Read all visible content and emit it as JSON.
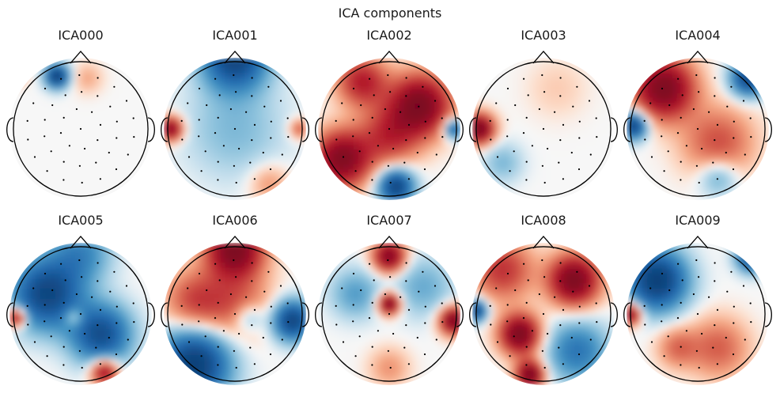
{
  "figure": {
    "title": "ICA components"
  },
  "components": [
    {
      "label": "ICA000",
      "blobs": [
        {
          "u": -0.35,
          "v": 0.78,
          "a": -0.95,
          "s": 0.12
        },
        {
          "u": -0.95,
          "v": 0.8,
          "a": 0.25,
          "s": 0.1
        },
        {
          "u": 0.1,
          "v": 0.75,
          "a": 0.15,
          "s": 0.15
        }
      ]
    },
    {
      "label": "ICA001",
      "blobs": [
        {
          "u": 0,
          "v": 1.05,
          "a": -0.9,
          "s": 0.32
        },
        {
          "u": -0.95,
          "v": 0,
          "a": 0.85,
          "s": 0.12
        },
        {
          "u": 0,
          "v": 0,
          "a": -0.2,
          "s": 0.5
        },
        {
          "u": 0.95,
          "v": 0,
          "a": 0.35,
          "s": 0.1
        },
        {
          "u": 0.5,
          "v": -0.8,
          "a": 0.2,
          "s": 0.2
        }
      ]
    },
    {
      "label": "ICA002",
      "blobs": [
        {
          "u": 0.45,
          "v": 0.35,
          "a": 1,
          "s": 0.3
        },
        {
          "u": -0.7,
          "v": -0.45,
          "a": 0.95,
          "s": 0.28
        },
        {
          "u": 0.1,
          "v": -0.85,
          "a": -0.9,
          "s": 0.18
        },
        {
          "u": 0.95,
          "v": 0,
          "a": -0.7,
          "s": 0.1
        },
        {
          "u": -0.4,
          "v": 0.7,
          "a": 0.6,
          "s": 0.25
        },
        {
          "u": 0,
          "v": -0.1,
          "a": 0.5,
          "s": 0.3
        }
      ]
    },
    {
      "label": "ICA003",
      "blobs": [
        {
          "u": -0.95,
          "v": 0,
          "a": 1,
          "s": 0.15
        },
        {
          "u": -0.6,
          "v": -0.5,
          "a": -0.2,
          "s": 0.2
        },
        {
          "u": 0.2,
          "v": 0.6,
          "a": 0.08,
          "s": 0.3
        }
      ]
    },
    {
      "label": "ICA004",
      "blobs": [
        {
          "u": -0.5,
          "v": 0.6,
          "a": 1,
          "s": 0.3
        },
        {
          "u": -0.95,
          "v": 0.05,
          "a": -0.9,
          "s": 0.14
        },
        {
          "u": 0.75,
          "v": 0.75,
          "a": -0.85,
          "s": 0.18
        },
        {
          "u": 0.3,
          "v": -0.2,
          "a": 0.4,
          "s": 0.35
        },
        {
          "u": 0.3,
          "v": -0.7,
          "a": -0.3,
          "s": 0.2
        }
      ]
    },
    {
      "label": "ICA005",
      "blobs": [
        {
          "u": -0.5,
          "v": 0.3,
          "a": -0.9,
          "s": 0.35
        },
        {
          "u": 0.3,
          "v": -0.3,
          "a": -0.8,
          "s": 0.3
        },
        {
          "u": -0.95,
          "v": -0.05,
          "a": 0.8,
          "s": 0.1
        },
        {
          "u": 0.35,
          "v": -0.85,
          "a": 0.75,
          "s": 0.14
        },
        {
          "u": -0.1,
          "v": -0.05,
          "a": 0.35,
          "s": 0.1
        },
        {
          "u": 0,
          "v": 0.9,
          "a": -0.4,
          "s": 0.3
        }
      ]
    },
    {
      "label": "ICA006",
      "blobs": [
        {
          "u": 0,
          "v": 0.95,
          "a": 1,
          "s": 0.28
        },
        {
          "u": -0.6,
          "v": -0.75,
          "a": -1,
          "s": 0.35
        },
        {
          "u": 0.85,
          "v": -0.1,
          "a": -0.9,
          "s": 0.2
        },
        {
          "u": 0,
          "v": 0.15,
          "a": 0.35,
          "s": 0.35
        },
        {
          "u": -0.6,
          "v": 0.2,
          "a": 0.4,
          "s": 0.3
        },
        {
          "u": 0.2,
          "v": -0.05,
          "a": -0.3,
          "s": 0.15
        }
      ]
    },
    {
      "label": "ICA007",
      "blobs": [
        {
          "u": 0,
          "v": 0.85,
          "a": 0.9,
          "s": 0.16
        },
        {
          "u": 0,
          "v": 0.15,
          "a": 0.95,
          "s": 0.11
        },
        {
          "u": 0.95,
          "v": -0.1,
          "a": 0.95,
          "s": 0.14
        },
        {
          "u": -0.5,
          "v": 0.3,
          "a": -0.3,
          "s": 0.25
        },
        {
          "u": 0.5,
          "v": 0.4,
          "a": -0.25,
          "s": 0.3
        },
        {
          "u": 0,
          "v": -0.8,
          "a": 0.2,
          "s": 0.2
        }
      ]
    },
    {
      "label": "ICA008",
      "blobs": [
        {
          "u": 0.45,
          "v": 0.5,
          "a": 1,
          "s": 0.25
        },
        {
          "u": -0.35,
          "v": -0.3,
          "a": 1,
          "s": 0.2
        },
        {
          "u": -1,
          "v": 0.05,
          "a": -0.9,
          "s": 0.11
        },
        {
          "u": 0.5,
          "v": -0.55,
          "a": -0.5,
          "s": 0.3
        },
        {
          "u": -0.2,
          "v": -0.9,
          "a": 1,
          "s": 0.14
        },
        {
          "u": -0.6,
          "v": 0.65,
          "a": 0.5,
          "s": 0.3
        }
      ]
    },
    {
      "label": "ICA009",
      "blobs": [
        {
          "u": -0.6,
          "v": 0.5,
          "a": -1,
          "s": 0.3
        },
        {
          "u": 0.8,
          "v": 0.85,
          "a": -0.9,
          "s": 0.15
        },
        {
          "u": -1,
          "v": 0,
          "a": 0.9,
          "s": 0.11
        },
        {
          "u": 0.3,
          "v": -0.5,
          "a": 0.35,
          "s": 0.3
        },
        {
          "u": -0.3,
          "v": -0.5,
          "a": 0.3,
          "s": 0.2
        }
      ]
    }
  ]
}
